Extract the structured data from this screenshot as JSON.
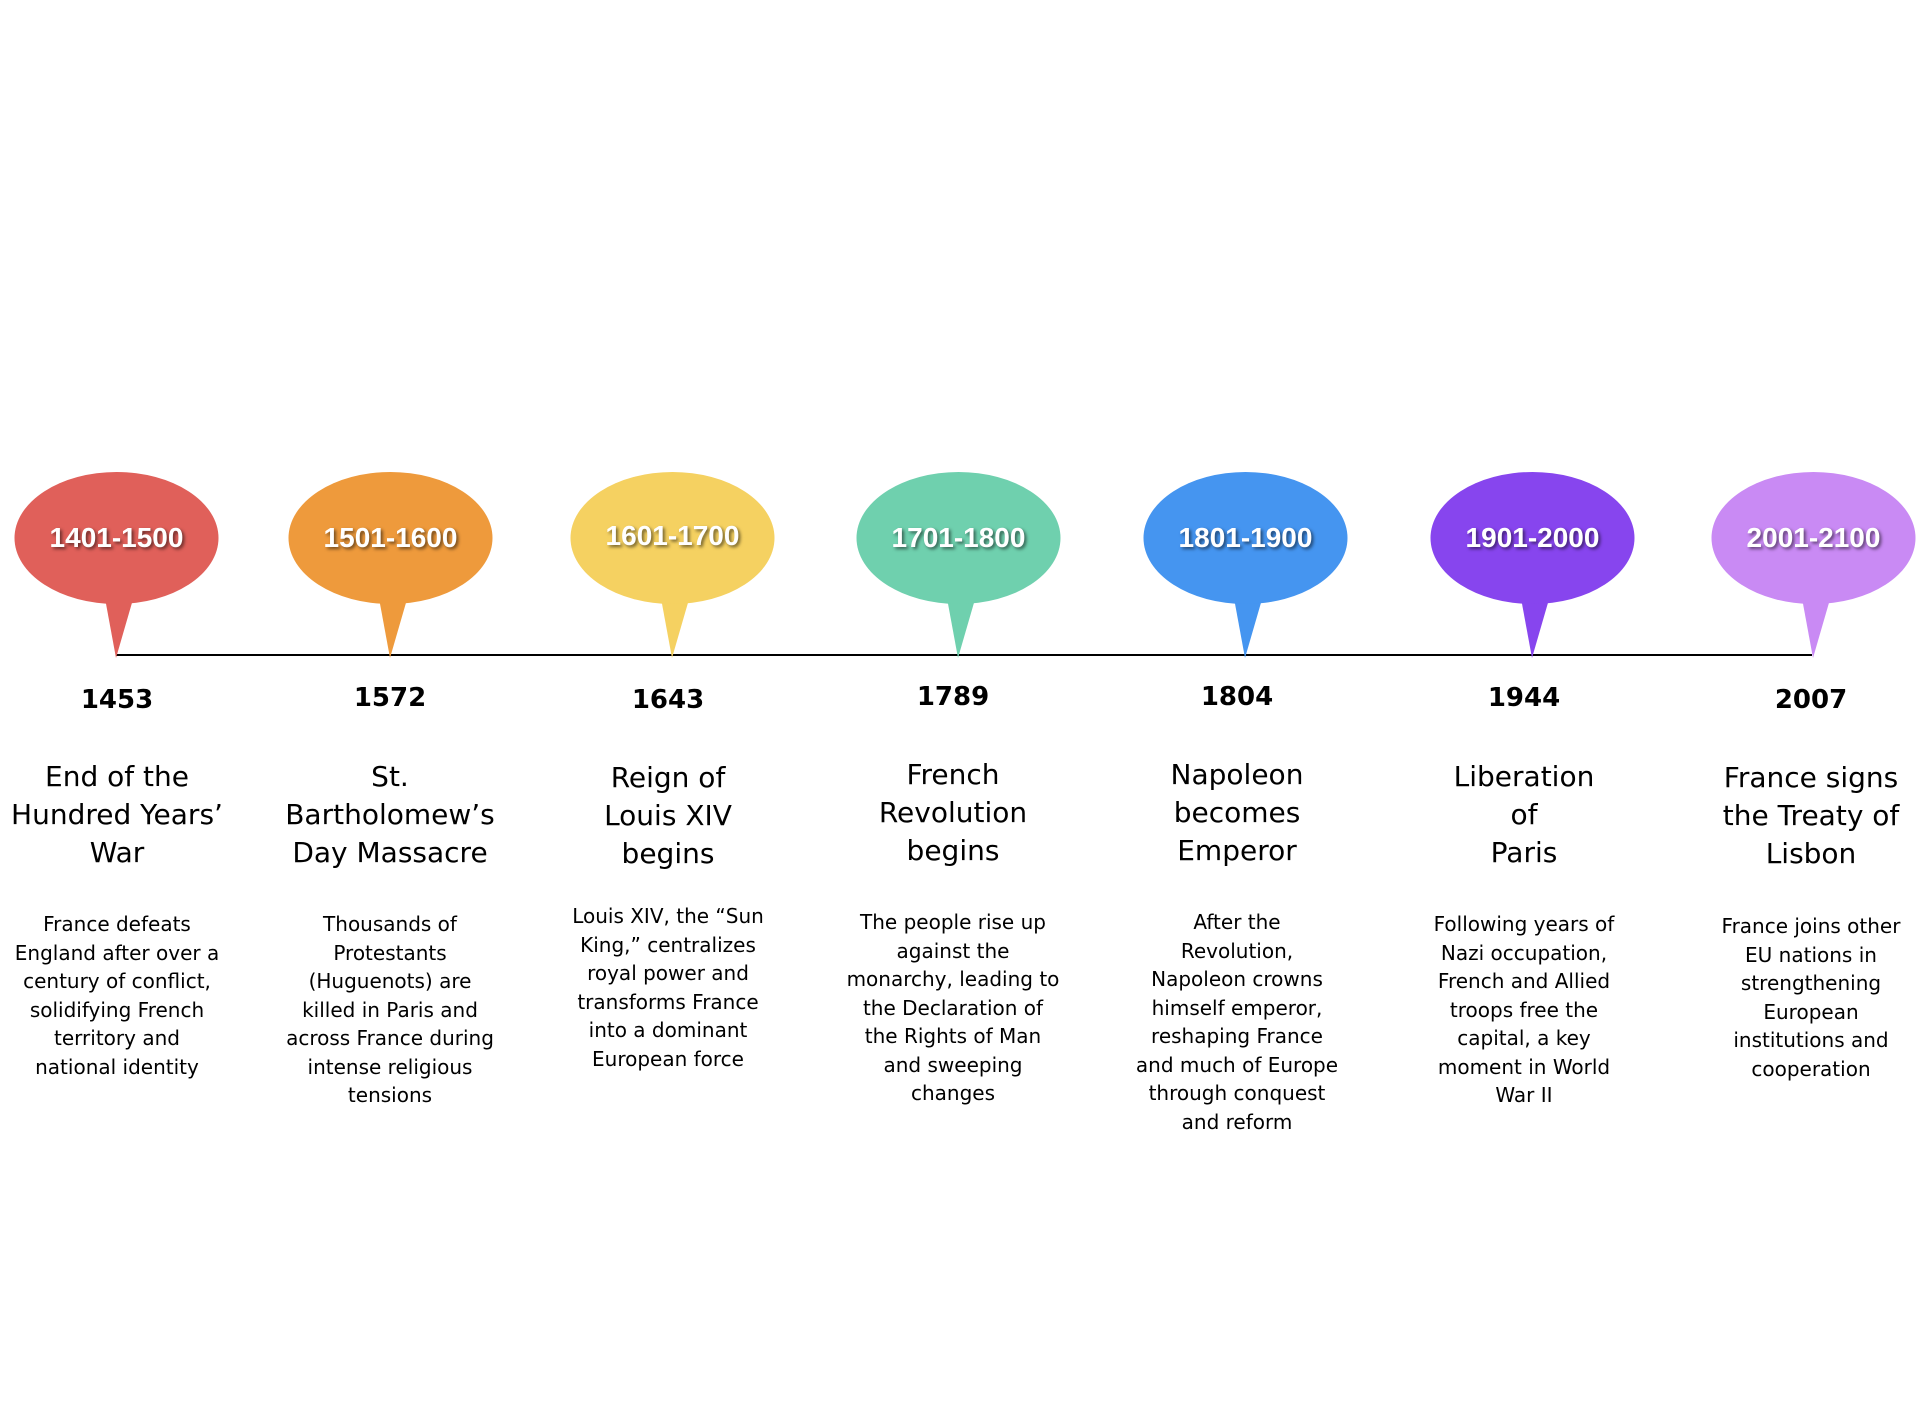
{
  "timeline": {
    "eras": [
      {
        "label": "1401-1500",
        "color": "#E0605A"
      },
      {
        "label": "1501-1600",
        "color": "#EE9A3C"
      },
      {
        "label": "1601-1700",
        "color": "#F5D161"
      },
      {
        "label": "1701-1800",
        "color": "#6FD0AE"
      },
      {
        "label": "1801-1900",
        "color": "#4595F0"
      },
      {
        "label": "1901-2000",
        "color": "#8745EE"
      },
      {
        "label": "2001-2100",
        "color": "#C98AF4"
      }
    ],
    "events": [
      {
        "year": "1453",
        "title": [
          "End of the",
          "Hundred Years’",
          "War"
        ],
        "description": [
          "France defeats",
          "England after over a",
          "century of conflict,",
          "solidifying French",
          "territory and",
          "national identity"
        ]
      },
      {
        "year": "1572",
        "title": [
          "St.",
          "Bartholomew’s",
          "Day Massacre"
        ],
        "description": [
          "Thousands of",
          "Protestants",
          "(Huguenots) are",
          "killed in Paris and",
          "across France during",
          "intense religious",
          "tensions"
        ]
      },
      {
        "year": "1643",
        "title": [
          "Reign of",
          "Louis XIV",
          "begins"
        ],
        "description": [
          "Louis XIV, the “Sun",
          "King,” centralizes",
          "royal power and",
          "transforms France",
          "into a dominant",
          "European force"
        ]
      },
      {
        "year": "1789",
        "title": [
          "French",
          "Revolution",
          "begins"
        ],
        "description": [
          "The people rise up",
          "against the",
          "monarchy, leading to",
          "the Declaration of",
          "the Rights of Man",
          "and sweeping",
          "changes"
        ]
      },
      {
        "year": "1804",
        "title": [
          "Napoleon",
          "becomes",
          "Emperor"
        ],
        "description": [
          "After the",
          "Revolution,",
          "Napoleon crowns",
          "himself emperor,",
          "reshaping France",
          "and much of Europe",
          "through conquest",
          "and reform"
        ]
      },
      {
        "year": "1944",
        "title": [
          "Liberation",
          "of",
          "Paris"
        ],
        "description": [
          "Following years of",
          "Nazi occupation,",
          "French and Allied",
          "troops free the",
          "capital, a key",
          "moment in World",
          "War II"
        ]
      },
      {
        "year": "2007",
        "title": [
          "France signs",
          "the Treaty of",
          "Lisbon"
        ],
        "description": [
          "France joins other",
          "EU nations in",
          "strengthening",
          "European",
          "institutions and",
          "cooperation"
        ]
      }
    ]
  }
}
